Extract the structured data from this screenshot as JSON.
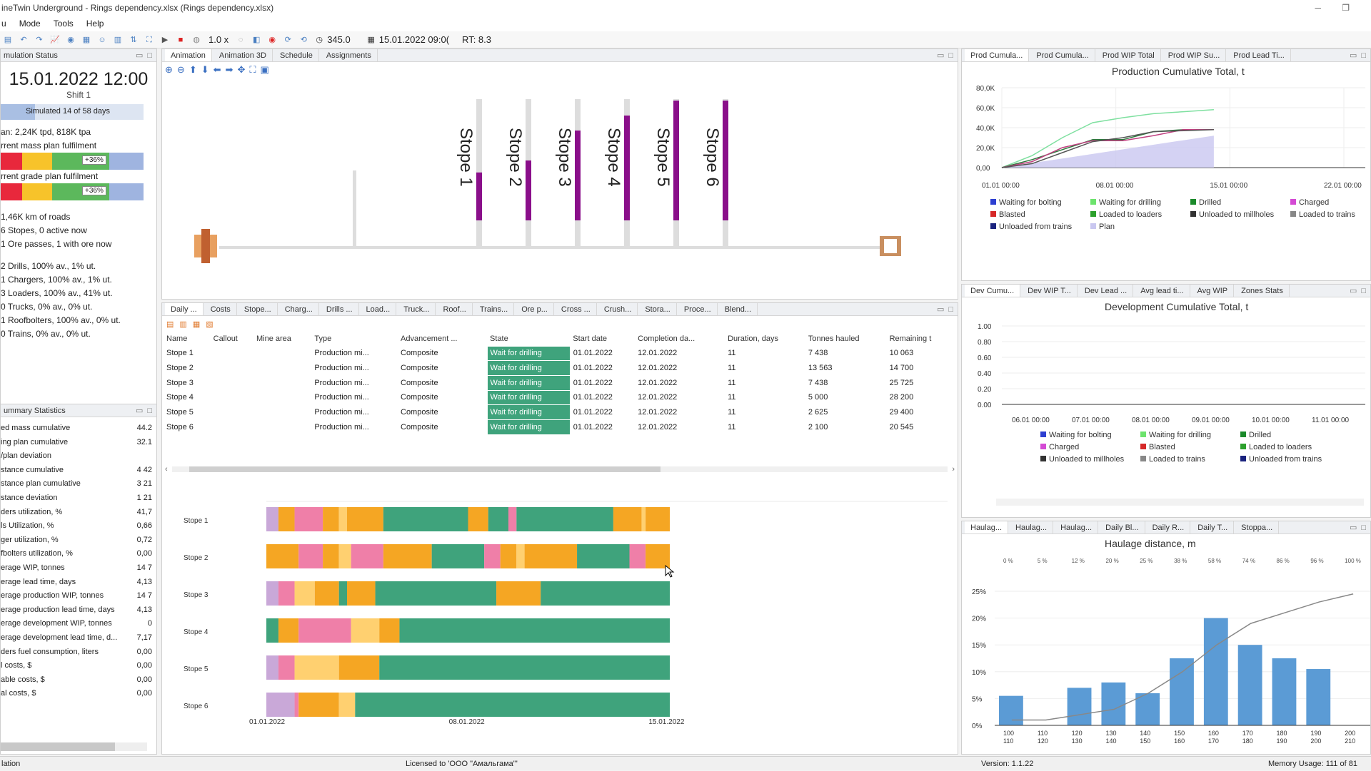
{
  "app": {
    "title": "ineTwin Underground - Rings dependency.xlsx (Rings dependency.xlsx)"
  },
  "menu": [
    "u",
    "Mode",
    "Tools",
    "Help"
  ],
  "toolbar": {
    "speed": "1.0 x",
    "time_value": "345.0",
    "datetime": "15.01.2022 09:0(",
    "rt": "RT: 8.3"
  },
  "sim_status": {
    "title": "mulation Status",
    "date": "15.01.2022 12:00",
    "shift": "Shift 1",
    "progress_text": "Simulated 14 of 58 days",
    "progress_value": 0.24,
    "plan_text": "an: 2,24K tpd, 818K tpa",
    "mass_plan_label": "rrent mass plan fulfilment",
    "mass_badge": "+36%",
    "grade_plan_label": "rrent grade plan fulfilment",
    "grade_badge": "+36%",
    "items": [
      "1,46K km of roads",
      "6 Stopes, 0 active now",
      "1 Ore passes, 1 with ore now",
      "2 Drills, 100% av., 1% ut.",
      "1 Chargers, 100% av., 1% ut.",
      "3 Loaders, 100% av., 41% ut.",
      "0 Trucks, 0% av., 0% ut.",
      "1 Roofbolters, 100% av., 0% ut.",
      "0 Trains, 0% av., 0% ut."
    ]
  },
  "summary": {
    "title": "ummary Statistics",
    "rows": [
      [
        "ed mass cumulative",
        "44.2"
      ],
      [
        "ing plan cumulative",
        "32.1"
      ],
      [
        "/plan deviation",
        ""
      ],
      [
        "stance cumulative",
        "4 42"
      ],
      [
        "stance plan cumulative",
        "3 21"
      ],
      [
        "stance deviation",
        "1 21"
      ],
      [
        "ders utilization, %",
        "41,7"
      ],
      [
        "ls Utilization, %",
        "0,66"
      ],
      [
        "ger utilization, %",
        "0,72"
      ],
      [
        "fbolters utilization, %",
        "0,00"
      ],
      [
        "erage WIP, tonnes",
        "14 7"
      ],
      [
        "erage lead time, days",
        "4,13"
      ],
      [
        "erage production WIP, tonnes",
        "14 7"
      ],
      [
        "erage production lead time, days",
        "4,13"
      ],
      [
        "erage development WIP, tonnes",
        "0"
      ],
      [
        "erage development lead time, d...",
        "7,17"
      ],
      [
        "ders fuel consumption, liters",
        "0,00"
      ],
      [
        "l costs, $",
        "0,00"
      ],
      [
        "able costs, $",
        "0,00"
      ],
      [
        "al costs, $",
        "0,00"
      ]
    ]
  },
  "anim_tabs": [
    "Animation",
    "Animation 3D",
    "Schedule",
    "Assignments"
  ],
  "stopes": [
    {
      "label": "Stope 1",
      "level": 0.32
    },
    {
      "label": "Stope 2",
      "level": 0.4
    },
    {
      "label": "Stope 3",
      "level": 0.6
    },
    {
      "label": "Stope 4",
      "level": 0.7
    },
    {
      "label": "Stope 5",
      "level": 0.8
    },
    {
      "label": "Stope 6",
      "level": 0.8
    }
  ],
  "mid_tabs": [
    "Daily ...",
    "Costs",
    "Stope...",
    "Charg...",
    "Drills ...",
    "Load...",
    "Truck...",
    "Roof...",
    "Trains...",
    "Ore p...",
    "Cross ...",
    "Crush...",
    "Stora...",
    "Proce...",
    "Blend..."
  ],
  "table": {
    "headers": [
      "Name",
      "Callout",
      "Mine area",
      "Type",
      "Advancement ...",
      "State",
      "Start date",
      "Completion da...",
      "Duration, days",
      "Tonnes hauled",
      "Remaining t"
    ],
    "rows": [
      [
        "Stope 1",
        "",
        "",
        "Production mi...",
        "Composite",
        "Wait for drilling",
        "01.01.2022",
        "12.01.2022",
        "11",
        "7 438",
        "10 063"
      ],
      [
        "Stope 2",
        "",
        "",
        "Production mi...",
        "Composite",
        "Wait for drilling",
        "01.01.2022",
        "12.01.2022",
        "11",
        "13 563",
        "14 700"
      ],
      [
        "Stope 3",
        "",
        "",
        "Production mi...",
        "Composite",
        "Wait for drilling",
        "01.01.2022",
        "12.01.2022",
        "11",
        "7 438",
        "25 725"
      ],
      [
        "Stope 4",
        "",
        "",
        "Production mi...",
        "Composite",
        "Wait for drilling",
        "01.01.2022",
        "12.01.2022",
        "11",
        "5 000",
        "28 200"
      ],
      [
        "Stope 5",
        "",
        "",
        "Production mi...",
        "Composite",
        "Wait for drilling",
        "01.01.2022",
        "12.01.2022",
        "11",
        "2 625",
        "29 400"
      ],
      [
        "Stope 6",
        "",
        "",
        "Production mi...",
        "Composite",
        "Wait for drilling",
        "01.01.2022",
        "12.01.2022",
        "11",
        "2 100",
        "20 545"
      ]
    ]
  },
  "gantt": {
    "rows": [
      "Stope 1",
      "Stope 2",
      "Stope 3",
      "Stope 4",
      "Stope 5",
      "Stope 6"
    ],
    "x_labels": [
      "01.01.2022",
      "08.01.2022",
      "15.01.2022"
    ],
    "segments": [
      [
        [
          "#c9a8d8",
          0.03
        ],
        [
          "#f5a623",
          0.07
        ],
        [
          "#ef7fa8",
          0.14
        ],
        [
          "#f5a623",
          0.18
        ],
        [
          "#ffd070",
          0.2
        ],
        [
          "#f5a623",
          0.29
        ],
        [
          "#3fa37c",
          0.5
        ],
        [
          "#f5a623",
          0.55
        ],
        [
          "#3fa37c",
          0.6
        ],
        [
          "#ef7fa8",
          0.62
        ],
        [
          "#3fa37c",
          0.86
        ],
        [
          "#f5a623",
          0.93
        ],
        [
          "#ffd070",
          0.94
        ],
        [
          "#f5a623",
          1.0
        ]
      ],
      [
        [
          "#f5a623",
          0.08
        ],
        [
          "#ef7fa8",
          0.14
        ],
        [
          "#f5a623",
          0.18
        ],
        [
          "#ffd070",
          0.21
        ],
        [
          "#ef7fa8",
          0.29
        ],
        [
          "#f5a623",
          0.41
        ],
        [
          "#3fa37c",
          0.54
        ],
        [
          "#ef7fa8",
          0.58
        ],
        [
          "#f5a623",
          0.62
        ],
        [
          "#ffd070",
          0.64
        ],
        [
          "#f5a623",
          0.77
        ],
        [
          "#3fa37c",
          0.9
        ],
        [
          "#ef7fa8",
          0.94
        ],
        [
          "#f5a623",
          1.0
        ]
      ],
      [
        [
          "#c9a8d8",
          0.03
        ],
        [
          "#ef7fa8",
          0.07
        ],
        [
          "#ffd070",
          0.12
        ],
        [
          "#f5a623",
          0.18
        ],
        [
          "#3fa37c",
          0.2
        ],
        [
          "#f5a623",
          0.27
        ],
        [
          "#3fa37c",
          0.57
        ],
        [
          "#f5a623",
          0.68
        ],
        [
          "#3fa37c",
          1.0
        ]
      ],
      [
        [
          "#3fa37c",
          0.03
        ],
        [
          "#f5a623",
          0.08
        ],
        [
          "#ef7fa8",
          0.21
        ],
        [
          "#ffd070",
          0.28
        ],
        [
          "#f5a623",
          0.33
        ],
        [
          "#3fa37c",
          1.0
        ]
      ],
      [
        [
          "#c9a8d8",
          0.03
        ],
        [
          "#ef7fa8",
          0.07
        ],
        [
          "#ffd070",
          0.18
        ],
        [
          "#f5a623",
          0.28
        ],
        [
          "#3fa37c",
          1.0
        ]
      ],
      [
        [
          "#c9a8d8",
          0.07
        ],
        [
          "#ef7fa8",
          0.08
        ],
        [
          "#f5a623",
          0.18
        ],
        [
          "#ffd070",
          0.22
        ],
        [
          "#3fa37c",
          1.0
        ]
      ]
    ]
  },
  "right_top": {
    "tabs": [
      "Prod Cumula...",
      "Prod Cumula...",
      "Prod WIP Total",
      "Prod WIP Su...",
      "Prod Lead Ti..."
    ],
    "legend": [
      [
        "#2d3fd1",
        "Waiting for bolting"
      ],
      [
        "#6de36d",
        "Waiting for drilling"
      ],
      [
        "#1b8a2b",
        "Drilled"
      ],
      [
        "#d44ad4",
        "Charged"
      ],
      [
        "#d62828",
        "Blasted"
      ],
      [
        "#2ca02c",
        "Loaded to loaders"
      ],
      [
        "#333",
        "Unloaded to millholes"
      ],
      [
        "#888",
        "Loaded to trains"
      ],
      [
        "#1a237e",
        "Unloaded from trains"
      ],
      [
        "#c9c7f0",
        "Plan"
      ]
    ]
  },
  "right_mid": {
    "tabs": [
      "Dev Cumu...",
      "Dev WIP T...",
      "Dev Lead ...",
      "Avg lead ti...",
      "Avg WIP",
      "Zones Stats"
    ],
    "legend": [
      [
        "#2d3fd1",
        "Waiting for bolting"
      ],
      [
        "#6de36d",
        "Waiting for drilling"
      ],
      [
        "#1b8a2b",
        "Drilled"
      ],
      [
        "#d44ad4",
        "Charged"
      ],
      [
        "#d62828",
        "Blasted"
      ],
      [
        "#2ca02c",
        "Loaded to loaders"
      ],
      [
        "#333",
        "Unloaded to millholes"
      ],
      [
        "#888",
        "Loaded to trains"
      ],
      [
        "#1a237e",
        "Unloaded from trains"
      ]
    ]
  },
  "right_bot": {
    "tabs": [
      "Haulag...",
      "Haulag...",
      "Haulag...",
      "Daily Bl...",
      "Daily R...",
      "Daily T...",
      "Stoppa..."
    ]
  },
  "chart_data": [
    {
      "type": "area",
      "title": "Production Cumulative Total, t",
      "x_ticks": [
        "01.01 00:00",
        "08.01 00:00",
        "15.01 00:00",
        "22.01 00:00"
      ],
      "y_ticks": [
        "0,00",
        "20,0K",
        "40,0K",
        "60,0K",
        "80,0K"
      ],
      "ylim": [
        0,
        80000
      ],
      "series": [
        {
          "name": "Plan",
          "color": "#c9c7f0",
          "x": [
            0,
            14
          ],
          "values": [
            0,
            32000
          ]
        },
        {
          "name": "Waiting for drilling",
          "color": "#7fe0a0",
          "x": [
            0,
            2,
            4,
            6,
            8,
            10,
            12,
            14
          ],
          "values": [
            0,
            12000,
            30000,
            45000,
            50000,
            54000,
            56000,
            58000
          ]
        },
        {
          "name": "Drilled",
          "color": "#2d7a3d",
          "x": [
            0,
            2,
            4,
            6,
            8,
            10,
            12,
            14
          ],
          "values": [
            0,
            8000,
            18000,
            28000,
            28000,
            36000,
            38000,
            38000
          ]
        },
        {
          "name": "Charged",
          "color": "#c04080",
          "x": [
            0,
            2,
            4,
            6,
            8,
            10,
            12,
            14
          ],
          "values": [
            0,
            6000,
            20000,
            27000,
            27000,
            32000,
            38000,
            38000
          ]
        },
        {
          "name": "Unloaded to millholes",
          "color": "#555",
          "x": [
            0,
            2,
            4,
            6,
            8,
            10,
            12,
            14
          ],
          "values": [
            0,
            4000,
            15000,
            26000,
            30000,
            36000,
            37000,
            38000
          ]
        }
      ]
    },
    {
      "type": "line",
      "title": "Development Cumulative Total, t",
      "x_ticks": [
        "06.01 00:00",
        "07.01 00:00",
        "08.01 00:00",
        "09.01 00:00",
        "10.01 00:00",
        "11.01 00:00"
      ],
      "y_ticks": [
        "0.00",
        "0.20",
        "0.40",
        "0.60",
        "0.80",
        "1.00"
      ],
      "ylim": [
        0,
        1
      ],
      "series": []
    },
    {
      "type": "bar",
      "title": "Haulage distance, m",
      "categories_top": [
        "100",
        "110",
        "120",
        "130",
        "140",
        "150",
        "160",
        "170",
        "180",
        "190",
        "200"
      ],
      "categories_bottom": [
        "110",
        "120",
        "130",
        "140",
        "150",
        "160",
        "170",
        "180",
        "190",
        "200",
        "210"
      ],
      "values": [
        5.5,
        0,
        7,
        8,
        6,
        12.5,
        20,
        15,
        12.5,
        10.5,
        0
      ],
      "y_ticks": [
        "0%",
        "5%",
        "10%",
        "15%",
        "20%",
        "25%"
      ],
      "ylim": [
        0,
        25
      ],
      "top_ticks": [
        "0 %",
        "5 %",
        "12 %",
        "20 %",
        "25 %",
        "38 %",
        "58 %",
        "74 %",
        "86 %",
        "96 %",
        "100 %"
      ],
      "cumulative": [
        1,
        1,
        2,
        3,
        6,
        10,
        15,
        19,
        21,
        23,
        24.5
      ]
    }
  ],
  "status": {
    "left": "lation",
    "center": "Licensed to 'OOO \"Амальгама\"'",
    "version": "Version: 1.1.22",
    "memory": "Memory Usage: 111 of 81"
  }
}
